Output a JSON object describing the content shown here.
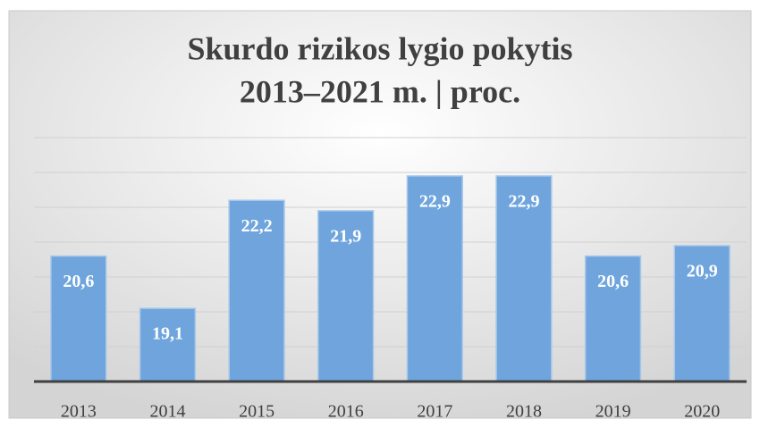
{
  "chart_data": {
    "type": "bar",
    "title": [
      "Skurdo rizikos lygio pokytis",
      "2013–2021 m.  | proc."
    ],
    "categories": [
      "2013",
      "2014",
      "2015",
      "2016",
      "2017",
      "2018",
      "2019",
      "2020"
    ],
    "values": [
      20.6,
      19.1,
      22.2,
      21.9,
      22.9,
      22.9,
      20.6,
      20.9
    ],
    "value_labels": [
      "20,6",
      "19,1",
      "22,2",
      "21,9",
      "22,9",
      "22,9",
      "20,6",
      "20,9"
    ],
    "color": "#6fa5dc",
    "ylim": [
      17,
      24
    ],
    "yticks": [
      17,
      18,
      19,
      20,
      21,
      22,
      23,
      24
    ],
    "grid": true
  }
}
